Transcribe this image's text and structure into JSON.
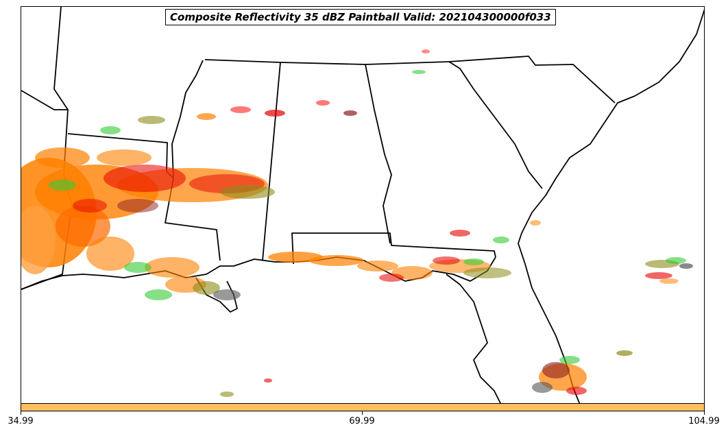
{
  "title": "Composite Reflectivity 35 dBZ Paintball Valid: 202104300000f033",
  "colorbar": {
    "color": "#ffbf5f",
    "ticks": [
      "34.99",
      "69.99",
      "104.99"
    ]
  },
  "palette": {
    "orange": "#ff8000",
    "dark_orange": "#ff6a00",
    "light_orange": "#ffa040",
    "red": "#e60000",
    "light_red": "#ff4040",
    "green": "#33cc33",
    "olive": "#8c8c1a",
    "dark_red": "#8b2020",
    "gray": "#555555",
    "coast": "#000000"
  }
}
